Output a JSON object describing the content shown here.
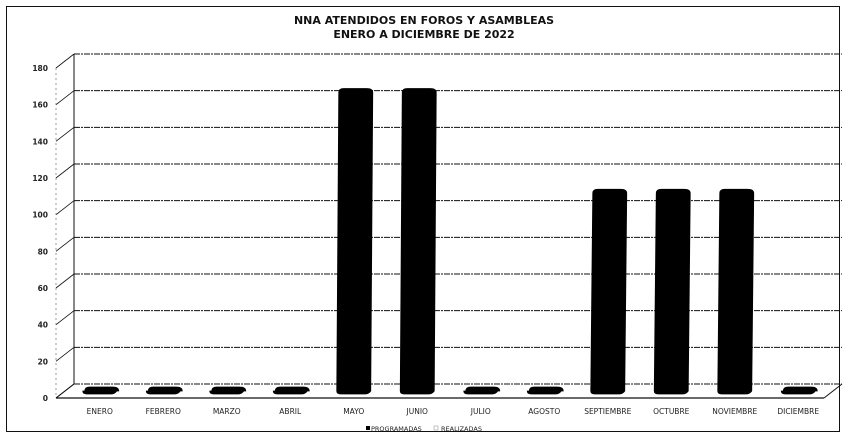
{
  "chart_data": {
    "type": "bar",
    "title_lines": [
      "NNA ATENDIDOS EN FOROS Y ASAMBLEAS",
      "ENERO A DICIEMBRE DE 2022"
    ],
    "categories": [
      "ENERO",
      "FEBRERO",
      "MARZO",
      "ABRIL",
      "MAYO",
      "JUNIO",
      "JULIO",
      "AGOSTO",
      "SEPTIEMBRE",
      "OCTUBRE",
      "NOVIEMBRE",
      "DICIEMBRE"
    ],
    "series": [
      {
        "name": "PROGRAMADAS",
        "values": [
          0,
          0,
          0,
          0,
          165,
          165,
          0,
          0,
          110,
          110,
          110,
          0
        ],
        "color": "#000000"
      },
      {
        "name": "REALIZADAS",
        "values": [
          0,
          0,
          0,
          0,
          0,
          0,
          0,
          0,
          0,
          0,
          0,
          0
        ],
        "color": "#ffffff"
      }
    ],
    "y_ticks": [
      "0",
      "20",
      "40",
      "60",
      "80",
      "100",
      "120",
      "140",
      "160",
      "180"
    ],
    "ylim": [
      0,
      180
    ],
    "grid": true,
    "legend_position": "bottom"
  }
}
